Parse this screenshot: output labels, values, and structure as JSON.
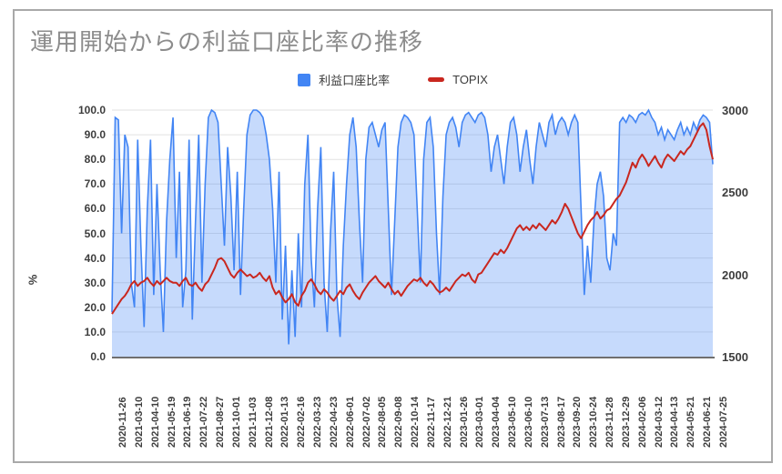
{
  "title": "運用開始からの利益口座比率の推移",
  "legend": {
    "items": [
      {
        "label": "利益口座比率",
        "color": "#4285f4",
        "marker": "square"
      },
      {
        "label": "TOPIX",
        "color": "#c9271f",
        "marker": "dash"
      }
    ]
  },
  "left_axis": {
    "title": "%",
    "min": 0,
    "max": 100,
    "ticks": [
      "100.0",
      "90.0",
      "80.0",
      "70.0",
      "60.0",
      "50.0",
      "40.0",
      "30.0",
      "20.0",
      "10.0",
      "0.0"
    ]
  },
  "right_axis": {
    "min": 1500,
    "max": 3000,
    "ticks": [
      "3000",
      "2500",
      "2000",
      "1500"
    ]
  },
  "colors": {
    "area_fill": "#4285f4",
    "area_fill_opacity": 0.3,
    "blue_line": "#4285f4",
    "red_line": "#c9271f",
    "gridline": "#e2e2e2",
    "baseline": "#6f6f6f",
    "title_text": "#8c8c8c",
    "tick_text": "#3d3d3d"
  },
  "chart_data": {
    "type": "area",
    "title": "運用開始からの利益口座比率の推移",
    "xlabel": "",
    "ylabel_left": "%",
    "ylabel_right": "",
    "grid": true,
    "legend_position": "top",
    "left_axis_range": [
      0,
      100
    ],
    "right_axis_range": [
      1500,
      3000
    ],
    "categories": [
      "2020-11-26",
      "2021-03-10",
      "2021-04-10",
      "2021-05-19",
      "2021-06-19",
      "2021-07-22",
      "2021-08-27",
      "2021-10-01",
      "2021-11-03",
      "2021-12-08",
      "2022-01-13",
      "2022-02-16",
      "2022-03-23",
      "2022-04-23",
      "2022-06-01",
      "2022-07-02",
      "2022-08-05",
      "2022-09-08",
      "2022-10-14",
      "2022-11-17",
      "2022-12-21",
      "2023-01-26",
      "2023-03-01",
      "2023-04-04",
      "2023-05-10",
      "2023-06-10",
      "2023-07-13",
      "2023-08-17",
      "2023-09-20",
      "2023-10-24",
      "2023-11-28",
      "2023-12-29",
      "2024-02-06",
      "2024-03-12",
      "2024-04-13",
      "2024-05-21",
      "2024-06-21",
      "2024-07-25"
    ],
    "samples_per_category": 5,
    "series": [
      {
        "name": "利益口座比率",
        "axis": "left",
        "style": "area",
        "color": "#4285f4",
        "values": [
          18,
          97,
          96,
          50,
          90,
          85,
          30,
          20,
          88,
          45,
          12,
          60,
          88,
          25,
          70,
          35,
          10,
          55,
          80,
          97,
          40,
          75,
          20,
          35,
          88,
          15,
          55,
          90,
          30,
          70,
          97,
          100,
          99,
          95,
          70,
          45,
          85,
          65,
          35,
          75,
          25,
          60,
          90,
          98,
          100,
          100,
          99,
          97,
          90,
          80,
          60,
          30,
          75,
          15,
          45,
          5,
          35,
          8,
          50,
          20,
          70,
          90,
          40,
          20,
          60,
          85,
          30,
          10,
          50,
          75,
          25,
          8,
          45,
          70,
          90,
          97,
          85,
          55,
          30,
          80,
          93,
          95,
          90,
          85,
          92,
          95,
          60,
          25,
          55,
          85,
          95,
          98,
          97,
          95,
          90,
          60,
          30,
          80,
          95,
          97,
          85,
          50,
          25,
          65,
          90,
          95,
          97,
          93,
          85,
          95,
          98,
          99,
          97,
          95,
          98,
          99,
          97,
          90,
          75,
          85,
          90,
          80,
          70,
          85,
          95,
          97,
          90,
          75,
          85,
          92,
          80,
          70,
          85,
          95,
          90,
          85,
          95,
          98,
          90,
          95,
          97,
          95,
          90,
          95,
          98,
          95,
          60,
          25,
          45,
          30,
          55,
          70,
          75,
          65,
          40,
          35,
          50,
          45,
          95,
          97,
          95,
          98,
          97,
          95,
          98,
          99,
          98,
          100,
          97,
          95,
          90,
          93,
          88,
          92,
          90,
          88,
          92,
          95,
          90,
          93,
          90,
          95,
          92,
          96,
          98,
          97,
          95,
          78
        ]
      },
      {
        "name": "TOPIX",
        "axis": "right",
        "style": "line",
        "color": "#c9271f",
        "values": [
          1760,
          1790,
          1820,
          1850,
          1870,
          1900,
          1940,
          1960,
          1930,
          1950,
          1960,
          1980,
          1950,
          1930,
          1960,
          1940,
          1960,
          1980,
          1960,
          1950,
          1950,
          1930,
          1960,
          1980,
          1940,
          1930,
          1950,
          1920,
          1900,
          1940,
          1960,
          2000,
          2040,
          2090,
          2100,
          2080,
          2040,
          2000,
          1980,
          2010,
          2030,
          2010,
          1990,
          2000,
          1980,
          1990,
          2010,
          1980,
          1960,
          1990,
          1920,
          1880,
          1900,
          1860,
          1830,
          1850,
          1880,
          1830,
          1810,
          1870,
          1900,
          1950,
          1970,
          1940,
          1900,
          1880,
          1910,
          1890,
          1860,
          1840,
          1870,
          1900,
          1880,
          1920,
          1940,
          1900,
          1870,
          1850,
          1890,
          1920,
          1950,
          1970,
          1990,
          1960,
          1940,
          1920,
          1950,
          1910,
          1880,
          1900,
          1870,
          1900,
          1930,
          1950,
          1970,
          1960,
          1980,
          1950,
          1930,
          1960,
          1940,
          1910,
          1890,
          1900,
          1920,
          1900,
          1930,
          1960,
          1980,
          2000,
          1990,
          2010,
          1970,
          1950,
          2000,
          2010,
          2040,
          2070,
          2100,
          2130,
          2120,
          2150,
          2130,
          2160,
          2200,
          2240,
          2280,
          2300,
          2270,
          2290,
          2270,
          2300,
          2280,
          2310,
          2290,
          2270,
          2300,
          2330,
          2310,
          2340,
          2380,
          2430,
          2400,
          2350,
          2300,
          2250,
          2220,
          2260,
          2300,
          2330,
          2350,
          2380,
          2340,
          2360,
          2390,
          2400,
          2430,
          2460,
          2480,
          2520,
          2560,
          2620,
          2680,
          2650,
          2700,
          2730,
          2700,
          2660,
          2690,
          2720,
          2680,
          2650,
          2700,
          2730,
          2710,
          2690,
          2720,
          2750,
          2730,
          2760,
          2780,
          2820,
          2860,
          2900,
          2920,
          2880,
          2780,
          2700
        ]
      }
    ]
  },
  "plot_geometry_note": "left % axis 0-100 step 10, right TOPIX axis 1500-3000 step 500"
}
